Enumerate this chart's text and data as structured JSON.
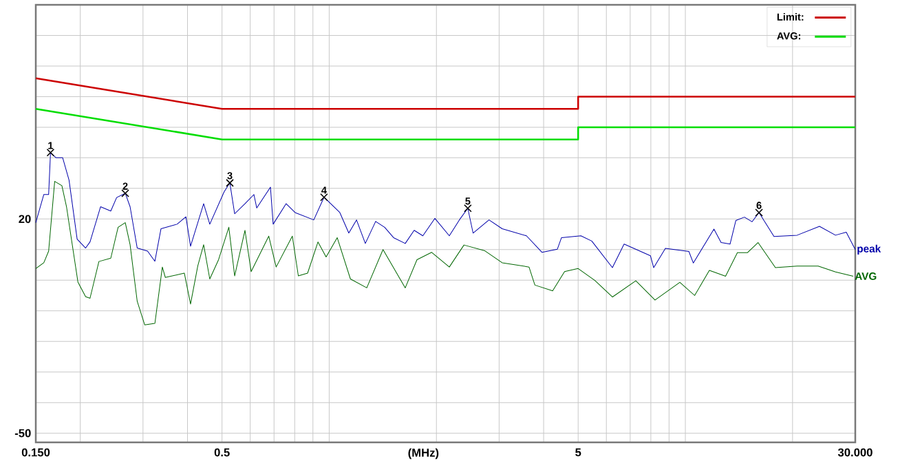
{
  "chart_data": {
    "type": "line",
    "xlabel": "(MHz)",
    "log": "x",
    "grid": true,
    "legend": "top right",
    "marker": "none",
    "line_style": "solid",
    "xlim": [
      0.15,
      30
    ],
    "ylim": [
      -53,
      90
    ],
    "xticks": [
      {
        "value": 0.15,
        "label": "0.150"
      },
      {
        "value": 0.2,
        "label": null
      },
      {
        "value": 0.3,
        "label": null
      },
      {
        "value": 0.4,
        "label": null
      },
      0.5,
      {
        "value": 0.6,
        "label": null
      },
      {
        "value": 0.7,
        "label": null
      },
      {
        "value": 0.8,
        "label": null
      },
      {
        "value": 0.9,
        "label": null
      },
      {
        "value": 1,
        "label": null
      },
      {
        "value": 2,
        "label": null
      },
      {
        "value": 3,
        "label": null
      },
      {
        "value": 4,
        "label": null
      },
      5,
      {
        "value": 6,
        "label": null
      },
      {
        "value": 7,
        "label": null
      },
      {
        "value": 8,
        "label": null
      },
      {
        "value": 9,
        "label": null
      },
      {
        "value": 10,
        "label": null
      },
      {
        "value": 20,
        "label": null
      },
      {
        "value": 30,
        "label": "30.000"
      }
    ],
    "yticks": [
      -50,
      {
        "value": -40,
        "label": null
      },
      {
        "value": -30,
        "label": null
      },
      {
        "value": -20,
        "label": null
      },
      {
        "value": -10,
        "label": null
      },
      {
        "value": 0,
        "label": null
      },
      {
        "value": 10,
        "label": null
      },
      20,
      {
        "value": 30,
        "label": null
      },
      {
        "value": 40,
        "label": null
      },
      {
        "value": 50,
        "label": null
      },
      {
        "value": 60,
        "label": null
      },
      {
        "value": 70,
        "label": null
      },
      {
        "value": 80,
        "label": null
      }
    ],
    "series": [
      {
        "name": "Limit:",
        "color": "#cc0000",
        "x": [
          0.15,
          0.5,
          5,
          5,
          30
        ],
        "values": [
          66,
          56,
          56,
          60,
          60
        ]
      },
      {
        "name": "AVG:",
        "color": "#00dd00",
        "x": [
          0.15,
          0.5,
          5,
          5,
          30
        ],
        "values": [
          56,
          46,
          46,
          50,
          50
        ]
      },
      {
        "name": "peak",
        "type": "line",
        "color": "#0000aa",
        "x": [
          0.15,
          0.158,
          0.163,
          0.165,
          0.171,
          0.1785,
          0.186,
          0.196,
          0.207,
          0.213,
          0.228,
          0.2436,
          0.253,
          0.2675,
          0.276,
          0.289,
          0.309,
          0.324,
          0.337,
          0.374,
          0.396,
          0.408,
          0.444,
          0.462,
          0.507,
          0.526,
          0.5426,
          0.58,
          0.6146,
          0.626,
          0.684,
          0.696,
          0.757,
          0.802,
          0.905,
          0.967,
          1.071,
          1.135,
          1.193,
          1.263,
          1.35,
          1.431,
          1.516,
          1.635,
          1.732,
          1.832,
          1.98,
          2.174,
          2.32,
          2.45,
          2.535,
          2.81,
          3.06,
          3.58,
          3.96,
          4.37,
          4.49,
          5.09,
          5.46,
          6.24,
          6.73,
          7.98,
          8.15,
          8.79,
          10.23,
          10.53,
          12.03,
          12.6,
          13.35,
          13.86,
          14.65,
          15.4,
          16.1,
          17.74,
          20.6,
          23.8,
          26.4,
          28.3,
          30
        ],
        "values": [
          18.8,
          28,
          28,
          41.7,
          40,
          40,
          32.7,
          13.4,
          10.5,
          12.5,
          24,
          22.6,
          27,
          28.4,
          24,
          10.5,
          9.5,
          6.2,
          16.8,
          18.3,
          20.7,
          11.1,
          25,
          18.3,
          28.9,
          31.8,
          21.7,
          25,
          28,
          23.6,
          30.4,
          18.3,
          25,
          22.1,
          19.7,
          27.1,
          22.1,
          15.4,
          19.7,
          12,
          19.2,
          17.3,
          13.9,
          12,
          16.3,
          14.5,
          20.2,
          14.5,
          19.7,
          23.5,
          15.4,
          19.7,
          16.8,
          14.5,
          9.1,
          10.1,
          13.9,
          14.5,
          12.8,
          4.1,
          11.8,
          8,
          4.1,
          10.4,
          9.4,
          5.6,
          16.7,
          12.3,
          11.8,
          19.5,
          20.6,
          19.1,
          22.1,
          14.3,
          14.7,
          17.6,
          14.7,
          15.7,
          10
        ]
      },
      {
        "name": "AVG",
        "type": "line",
        "color": "#006600",
        "x": [
          0.15,
          0.158,
          0.163,
          0.1695,
          0.1776,
          0.183,
          0.197,
          0.207,
          0.213,
          0.2256,
          0.2436,
          0.2554,
          0.2675,
          0.276,
          0.289,
          0.3033,
          0.324,
          0.34,
          0.3466,
          0.392,
          0.408,
          0.4276,
          0.444,
          0.462,
          0.489,
          0.5226,
          0.5426,
          0.58,
          0.6038,
          0.6765,
          0.7096,
          0.788,
          0.819,
          0.8696,
          0.93,
          0.98,
          1.053,
          1.147,
          1.275,
          1.416,
          1.635,
          1.764,
          1.94,
          2.174,
          2.39,
          2.736,
          3.06,
          3.64,
          3.78,
          4.24,
          4.58,
          5.0,
          5.57,
          6.24,
          7.26,
          8.22,
          9.65,
          10.62,
          11.68,
          12.97,
          14.0,
          14.95,
          16.0,
          17.9,
          20.6,
          23.6,
          26.4,
          29.6
        ],
        "values": [
          3.8,
          5.7,
          9.5,
          32.3,
          30.9,
          24,
          -0.6,
          -5.4,
          -5.9,
          6.1,
          7.2,
          17.3,
          18.8,
          11.6,
          -6.9,
          -14.6,
          -14.1,
          4.3,
          0.9,
          2.3,
          -7.8,
          4.7,
          11.6,
          0.4,
          6.7,
          17.3,
          1.4,
          16.3,
          2.8,
          14.4,
          4.3,
          14.4,
          1.4,
          2.3,
          12.5,
          7.6,
          13.9,
          0.4,
          -2.5,
          10,
          -2.5,
          6.7,
          9.1,
          4.3,
          11.5,
          9.6,
          5.7,
          4.3,
          -1.6,
          -3.5,
          2.8,
          3.8,
          -0.1,
          -5.5,
          -0.2,
          -6.5,
          -0.7,
          -5,
          3.2,
          1.3,
          9,
          9,
          12.3,
          4.1,
          4.6,
          4.6,
          2.7,
          1.3
        ]
      }
    ],
    "annotations": [
      {
        "text": "1",
        "x": 0.165,
        "y": 41.7
      },
      {
        "text": "2",
        "x": 0.2675,
        "y": 28.4
      },
      {
        "text": "3",
        "x": 0.526,
        "y": 31.8
      },
      {
        "text": "4",
        "x": 0.967,
        "y": 27.1
      },
      {
        "text": "5",
        "x": 2.45,
        "y": 23.5
      },
      {
        "text": "6",
        "x": 16.1,
        "y": 22.1
      }
    ]
  }
}
